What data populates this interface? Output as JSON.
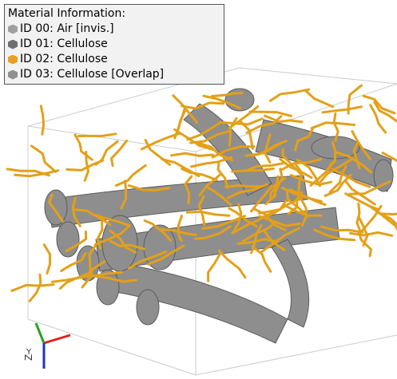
{
  "legend": {
    "title": "Material Information:",
    "items": [
      {
        "label": "ID 00: Air [invis.]",
        "color": "#a0a0a0"
      },
      {
        "label": "ID 01: Cellulose",
        "color": "#707070"
      },
      {
        "label": "ID 02: Cellulose",
        "color": "#e8a020"
      },
      {
        "label": "ID 03: Cellulose [Overlap]",
        "color": "#909090"
      }
    ]
  },
  "axes": {
    "z": "Z",
    "y": "Y"
  }
}
